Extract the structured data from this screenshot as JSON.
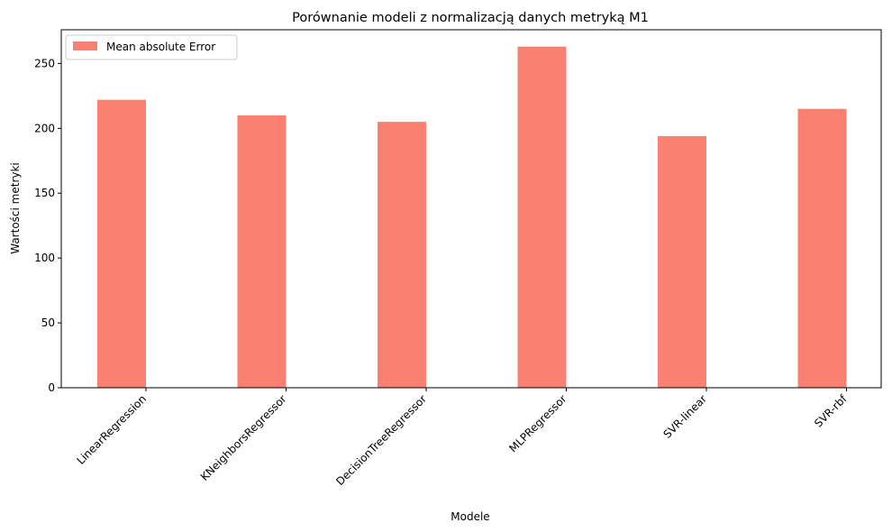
{
  "chart_data": {
    "type": "bar",
    "title": "Porównanie modeli z normalizacją danych metryką M1",
    "xlabel": "Modele",
    "ylabel": "Wartości metryki",
    "categories": [
      "LinearRegression",
      "KNeighborsRegressor",
      "DecisionTreeRegressor",
      "MLPRegressor",
      "SVR-linear",
      "SVR-rbf"
    ],
    "series": [
      {
        "name": "Mean absolute Error",
        "values": [
          222,
          210,
          205,
          263,
          194,
          215
        ],
        "color": "#fa8072"
      }
    ],
    "ylim": [
      0,
      276
    ],
    "yticks": [
      0,
      50,
      100,
      150,
      200,
      250
    ],
    "grid": false,
    "legend_position": "top-left"
  }
}
